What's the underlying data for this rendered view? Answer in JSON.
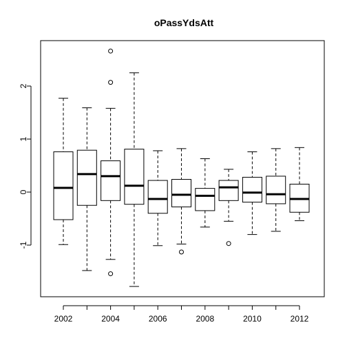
{
  "chart_data": {
    "type": "boxplot",
    "title": "oPassYdsAtt",
    "xlabel": "",
    "ylabel": "",
    "ylim": [
      -1.95,
      2.95
    ],
    "x_tick_labels": [
      "2002",
      "2004",
      "2006",
      "2008",
      "2010",
      "2012"
    ],
    "y_ticks": [
      -1,
      0,
      1,
      2
    ],
    "y_tick_labels": [
      "-1",
      "0",
      "1",
      "2"
    ],
    "grid": false,
    "legend": "none",
    "boxes": [
      {
        "year": "2002",
        "low": -0.99,
        "q1": -0.52,
        "median": 0.08,
        "q3": 0.76,
        "high": 1.77,
        "outliers": []
      },
      {
        "year": "2003",
        "low": -1.48,
        "q1": -0.25,
        "median": 0.34,
        "q3": 0.79,
        "high": 1.59,
        "outliers": []
      },
      {
        "year": "2004",
        "low": -1.27,
        "q1": -0.16,
        "median": 0.3,
        "q3": 0.59,
        "high": 1.58,
        "outliers": [
          2.66,
          2.07,
          -1.54
        ]
      },
      {
        "year": "2005",
        "low": -1.78,
        "q1": -0.23,
        "median": 0.12,
        "q3": 0.81,
        "high": 2.25,
        "outliers": []
      },
      {
        "year": "2006",
        "low": -1.01,
        "q1": -0.4,
        "median": -0.13,
        "q3": 0.22,
        "high": 0.78,
        "outliers": []
      },
      {
        "year": "2007",
        "low": -0.98,
        "q1": -0.28,
        "median": -0.05,
        "q3": 0.24,
        "high": 0.82,
        "outliers": [
          -1.13
        ]
      },
      {
        "year": "2008",
        "low": -0.66,
        "q1": -0.35,
        "median": -0.07,
        "q3": 0.07,
        "high": 0.63,
        "outliers": []
      },
      {
        "year": "2009",
        "low": -0.55,
        "q1": -0.16,
        "median": 0.09,
        "q3": 0.22,
        "high": 0.43,
        "outliers": [
          -0.97
        ]
      },
      {
        "year": "2010",
        "low": -0.8,
        "q1": -0.19,
        "median": -0.01,
        "q3": 0.28,
        "high": 0.76,
        "outliers": []
      },
      {
        "year": "2011",
        "low": -0.74,
        "q1": -0.22,
        "median": -0.04,
        "q3": 0.3,
        "high": 0.82,
        "outliers": []
      },
      {
        "year": "2012",
        "low": -0.54,
        "q1": -0.38,
        "median": -0.13,
        "q3": 0.15,
        "high": 0.84,
        "outliers": []
      }
    ]
  }
}
